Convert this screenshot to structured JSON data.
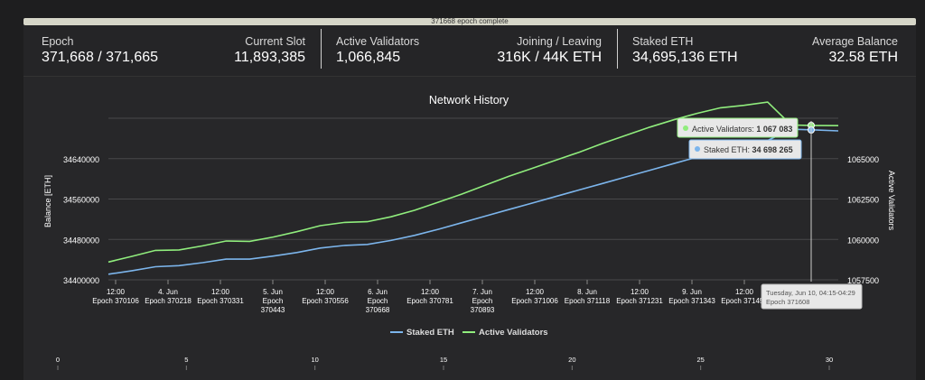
{
  "progress": {
    "label": "371668 epoch complete",
    "fraction": 1.0
  },
  "stats": {
    "epoch": {
      "label": "Epoch",
      "value": "371,668 / 371,665"
    },
    "current_slot": {
      "label": "Current Slot",
      "value": "11,893,385"
    },
    "active_validators": {
      "label": "Active Validators",
      "value": "1,066,845"
    },
    "joining_leaving": {
      "label": "Joining / Leaving",
      "value": "316K / 44K ETH"
    },
    "staked_eth": {
      "label": "Staked ETH",
      "value": "34,695,136 ETH"
    },
    "average_balance": {
      "label": "Average Balance",
      "value": "32.58 ETH"
    }
  },
  "chart_data": {
    "type": "line",
    "title": "Network History",
    "y_left": {
      "label": "Balance [ETH]",
      "ticks": [
        "34400000",
        "34480000",
        "34560000",
        "34640000"
      ],
      "range": [
        34400000,
        34720000
      ]
    },
    "y_right": {
      "label": "Active Validators",
      "ticks": [
        "1057500",
        "1060000",
        "1062500",
        "1065000"
      ],
      "range": [
        1057500,
        1067500
      ]
    },
    "x_ticks": [
      {
        "l1": "12:00",
        "l2": "Epoch 370106"
      },
      {
        "l1": "4. Jun",
        "l2": "Epoch 370218"
      },
      {
        "l1": "12:00",
        "l2": "Epoch 370331"
      },
      {
        "l1": "5. Jun",
        "l2": "Epoch",
        "l3": "370443"
      },
      {
        "l1": "12:00",
        "l2": "Epoch 370556"
      },
      {
        "l1": "6. Jun",
        "l2": "Epoch",
        "l3": "370668"
      },
      {
        "l1": "12:00",
        "l2": "Epoch 370781"
      },
      {
        "l1": "7. Jun",
        "l2": "Epoch",
        "l3": "370893"
      },
      {
        "l1": "12:00",
        "l2": "Epoch 371006"
      },
      {
        "l1": "8. Jun",
        "l2": "Epoch 371118"
      },
      {
        "l1": "12:00",
        "l2": "Epoch 371231"
      },
      {
        "l1": "9. Jun",
        "l2": "Epoch 371343"
      },
      {
        "l1": "12:00",
        "l2": "Epoch 371455"
      }
    ],
    "series": [
      {
        "name": "Staked ETH",
        "color": "#7cb5ec",
        "values": [
          34411000,
          34418000,
          34426000,
          34428000,
          34434000,
          34441000,
          34441000,
          34447000,
          34454000,
          34463000,
          34468000,
          34470000,
          34478000,
          34488000,
          34500000,
          34513000,
          34526000,
          34539000,
          34552000,
          34565000,
          34578000,
          34591000,
          34604000,
          34617000,
          34630000,
          34643000,
          34655000,
          34662000,
          34676000,
          34698265,
          34697000,
          34695000
        ]
      },
      {
        "name": "Active Validators",
        "color": "#90ed7d",
        "values": [
          1058600,
          1058950,
          1059320,
          1059350,
          1059600,
          1059900,
          1059880,
          1060150,
          1060480,
          1060850,
          1061050,
          1061100,
          1061400,
          1061800,
          1062300,
          1062800,
          1063350,
          1063900,
          1064400,
          1064900,
          1065400,
          1065950,
          1066450,
          1066950,
          1067400,
          1067800,
          1068150,
          1068300,
          1068500,
          1067083,
          1067050,
          1067040
        ]
      }
    ],
    "tooltip": {
      "active_label": "Active Validators: ",
      "active_value": "1 067 083",
      "staked_label": "Staked ETH: ",
      "staked_value": "34 698 265",
      "date": "Tuesday, Jun 10, 04:15-04:29",
      "epoch": "Epoch 371608"
    },
    "legend": [
      "Staked ETH",
      "Active Validators"
    ],
    "navigator_ticks": [
      "0",
      "5",
      "10",
      "15",
      "20",
      "25",
      "30"
    ]
  }
}
